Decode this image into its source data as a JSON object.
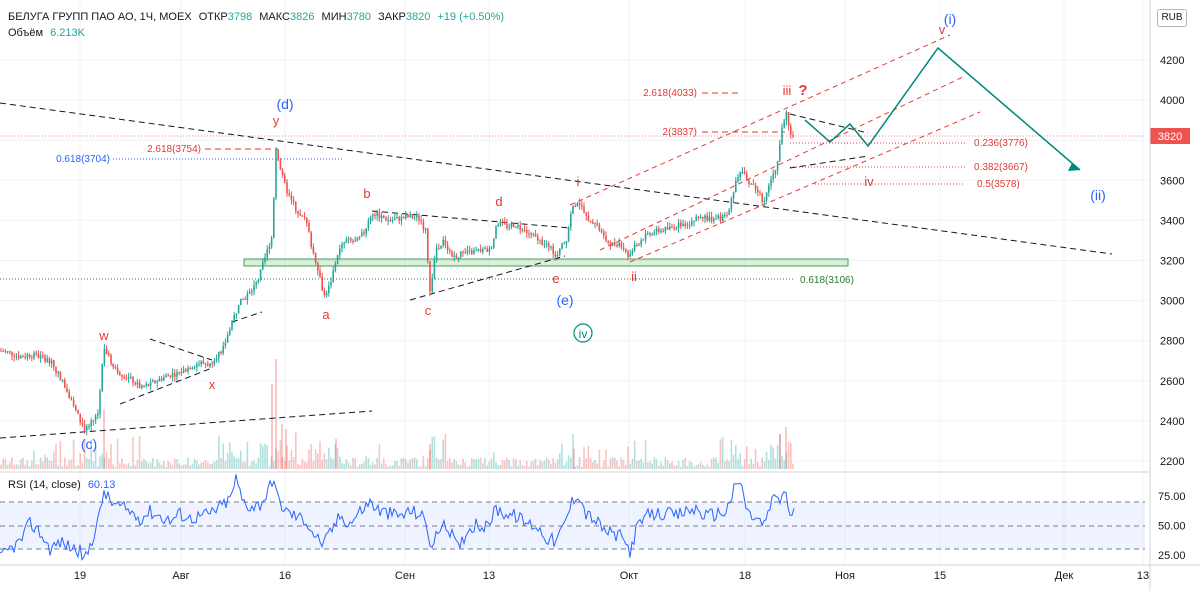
{
  "header": {
    "symbol": "БЕЛУГА ГРУПП ПАО АО, 1Ч, MOEX",
    "open_label": "ОТКР",
    "open_value": "3798",
    "high_label": "МАКС",
    "high_value": "3826",
    "low_label": "МИН",
    "low_value": "3780",
    "close_label": "ЗАКР",
    "close_value": "3820",
    "change": "+19 (+0.50%)",
    "volume_label": "Объём",
    "volume_value": "6.213K"
  },
  "currency_button": "RUB",
  "rsi_header": {
    "label": "RSI (14, close)",
    "value": "60.13"
  },
  "colors": {
    "up": "#26a69a",
    "down": "#ef5350",
    "wave_blue": "#2962ff",
    "wave_red": "#e53935",
    "wave_green": "#00897b",
    "rsi_line": "#2962ff"
  },
  "chart_data": [
    {
      "type": "candlestick",
      "y_ticks": [
        4200,
        4000,
        3800,
        3600,
        3400,
        3200,
        3000,
        2800,
        2600,
        2400,
        2200
      ],
      "ylim": [
        2150,
        4400
      ],
      "x_ticks": [
        "19",
        "Авг",
        "16",
        "Сен",
        "13",
        "Окт",
        "18",
        "Ноя",
        "15",
        "Дек",
        "13"
      ],
      "last_price": "3820",
      "price_path": [
        [
          0,
          2750
        ],
        [
          10,
          2740
        ],
        [
          20,
          2720
        ],
        [
          30,
          2730
        ],
        [
          40,
          2720
        ],
        [
          50,
          2700
        ],
        [
          60,
          2620
        ],
        [
          70,
          2520
        ],
        [
          80,
          2400
        ],
        [
          85,
          2360
        ],
        [
          90,
          2380
        ],
        [
          98,
          2440
        ],
        [
          104,
          2780
        ],
        [
          110,
          2700
        ],
        [
          120,
          2640
        ],
        [
          130,
          2610
        ],
        [
          140,
          2570
        ],
        [
          150,
          2580
        ],
        [
          160,
          2610
        ],
        [
          170,
          2630
        ],
        [
          180,
          2640
        ],
        [
          190,
          2670
        ],
        [
          200,
          2690
        ],
        [
          210,
          2680
        ],
        [
          215,
          2720
        ],
        [
          222,
          2750
        ],
        [
          230,
          2870
        ],
        [
          240,
          2990
        ],
        [
          250,
          3040
        ],
        [
          258,
          3100
        ],
        [
          266,
          3230
        ],
        [
          272,
          3320
        ],
        [
          276,
          3760
        ],
        [
          282,
          3620
        ],
        [
          288,
          3530
        ],
        [
          295,
          3470
        ],
        [
          300,
          3420
        ],
        [
          306,
          3400
        ],
        [
          312,
          3260
        ],
        [
          318,
          3160
        ],
        [
          324,
          3020
        ],
        [
          330,
          3080
        ],
        [
          338,
          3240
        ],
        [
          346,
          3300
        ],
        [
          356,
          3290
        ],
        [
          364,
          3340
        ],
        [
          372,
          3440
        ],
        [
          380,
          3420
        ],
        [
          390,
          3400
        ],
        [
          400,
          3410
        ],
        [
          410,
          3420
        ],
        [
          420,
          3410
        ],
        [
          426,
          3340
        ],
        [
          430,
          3040
        ],
        [
          436,
          3260
        ],
        [
          444,
          3300
        ],
        [
          452,
          3220
        ],
        [
          460,
          3230
        ],
        [
          470,
          3240
        ],
        [
          480,
          3250
        ],
        [
          490,
          3250
        ],
        [
          498,
          3390
        ],
        [
          506,
          3370
        ],
        [
          516,
          3380
        ],
        [
          526,
          3340
        ],
        [
          536,
          3310
        ],
        [
          546,
          3280
        ],
        [
          556,
          3230
        ],
        [
          566,
          3300
        ],
        [
          572,
          3460
        ],
        [
          578,
          3500
        ],
        [
          586,
          3420
        ],
        [
          596,
          3390
        ],
        [
          604,
          3310
        ],
        [
          612,
          3280
        ],
        [
          620,
          3290
        ],
        [
          628,
          3230
        ],
        [
          634,
          3260
        ],
        [
          642,
          3310
        ],
        [
          650,
          3340
        ],
        [
          660,
          3350
        ],
        [
          670,
          3360
        ],
        [
          680,
          3380
        ],
        [
          690,
          3390
        ],
        [
          700,
          3420
        ],
        [
          710,
          3410
        ],
        [
          720,
          3410
        ],
        [
          728,
          3420
        ],
        [
          734,
          3560
        ],
        [
          740,
          3650
        ],
        [
          748,
          3600
        ],
        [
          756,
          3560
        ],
        [
          764,
          3490
        ],
        [
          770,
          3600
        ],
        [
          776,
          3640
        ],
        [
          781,
          3830
        ],
        [
          786,
          3950
        ],
        [
          790,
          3810
        ],
        [
          794,
          3820
        ]
      ],
      "rsi_levels": [
        70,
        50,
        30
      ],
      "rsi_ticks": [
        "75.00",
        "50.00",
        "25.00"
      ],
      "rsi_path": [
        [
          0,
          22
        ],
        [
          10,
          30
        ],
        [
          20,
          36
        ],
        [
          30,
          52
        ],
        [
          40,
          44
        ],
        [
          50,
          30
        ],
        [
          60,
          36
        ],
        [
          70,
          32
        ],
        [
          80,
          28
        ],
        [
          85,
          20
        ],
        [
          92,
          38
        ],
        [
          100,
          60
        ],
        [
          104,
          80
        ],
        [
          110,
          70
        ],
        [
          120,
          66
        ],
        [
          130,
          62
        ],
        [
          140,
          56
        ],
        [
          150,
          62
        ],
        [
          160,
          58
        ],
        [
          170,
          54
        ],
        [
          180,
          60
        ],
        [
          190,
          56
        ],
        [
          200,
          58
        ],
        [
          210,
          60
        ],
        [
          220,
          66
        ],
        [
          230,
          72
        ],
        [
          236,
          90
        ],
        [
          242,
          72
        ],
        [
          250,
          66
        ],
        [
          260,
          68
        ],
        [
          268,
          78
        ],
        [
          273,
          92
        ],
        [
          278,
          72
        ],
        [
          286,
          62
        ],
        [
          296,
          58
        ],
        [
          306,
          54
        ],
        [
          316,
          40
        ],
        [
          324,
          34
        ],
        [
          330,
          44
        ],
        [
          340,
          58
        ],
        [
          350,
          52
        ],
        [
          360,
          62
        ],
        [
          370,
          70
        ],
        [
          380,
          62
        ],
        [
          390,
          60
        ],
        [
          400,
          58
        ],
        [
          410,
          62
        ],
        [
          420,
          60
        ],
        [
          426,
          52
        ],
        [
          432,
          30
        ],
        [
          440,
          50
        ],
        [
          450,
          46
        ],
        [
          458,
          30
        ],
        [
          466,
          44
        ],
        [
          476,
          52
        ],
        [
          486,
          48
        ],
        [
          496,
          64
        ],
        [
          506,
          60
        ],
        [
          516,
          58
        ],
        [
          526,
          52
        ],
        [
          536,
          50
        ],
        [
          546,
          40
        ],
        [
          556,
          36
        ],
        [
          564,
          50
        ],
        [
          572,
          70
        ],
        [
          578,
          78
        ],
        [
          586,
          60
        ],
        [
          596,
          54
        ],
        [
          604,
          46
        ],
        [
          614,
          42
        ],
        [
          622,
          40
        ],
        [
          630,
          28
        ],
        [
          636,
          46
        ],
        [
          646,
          58
        ],
        [
          656,
          60
        ],
        [
          666,
          60
        ],
        [
          676,
          58
        ],
        [
          686,
          62
        ],
        [
          696,
          64
        ],
        [
          706,
          58
        ],
        [
          716,
          60
        ],
        [
          726,
          62
        ],
        [
          734,
          80
        ],
        [
          740,
          88
        ],
        [
          748,
          60
        ],
        [
          756,
          56
        ],
        [
          764,
          50
        ],
        [
          770,
          66
        ],
        [
          776,
          76
        ],
        [
          780,
          72
        ],
        [
          786,
          80
        ],
        [
          790,
          56
        ],
        [
          794,
          60
        ]
      ],
      "annotations": {
        "wave_blue": [
          "(i)",
          "(ii)",
          "(d)",
          "(c)",
          "(e)"
        ],
        "wave_green": [
          "iv"
        ],
        "wave_red": [
          "w",
          "x",
          "y",
          "a",
          "b",
          "c",
          "d",
          "e",
          "i",
          "ii",
          "iii",
          "iv",
          "v",
          "?"
        ],
        "fib_red": [
          "2.618(4033)",
          "2(3837)",
          "2.618(3754)",
          "0.236(3776)",
          "0.382(3667)",
          "0.5(3578)"
        ],
        "fib_blue": [
          "0.618(3704)"
        ],
        "fib_green": [
          "0.618(3106)"
        ]
      }
    }
  ]
}
